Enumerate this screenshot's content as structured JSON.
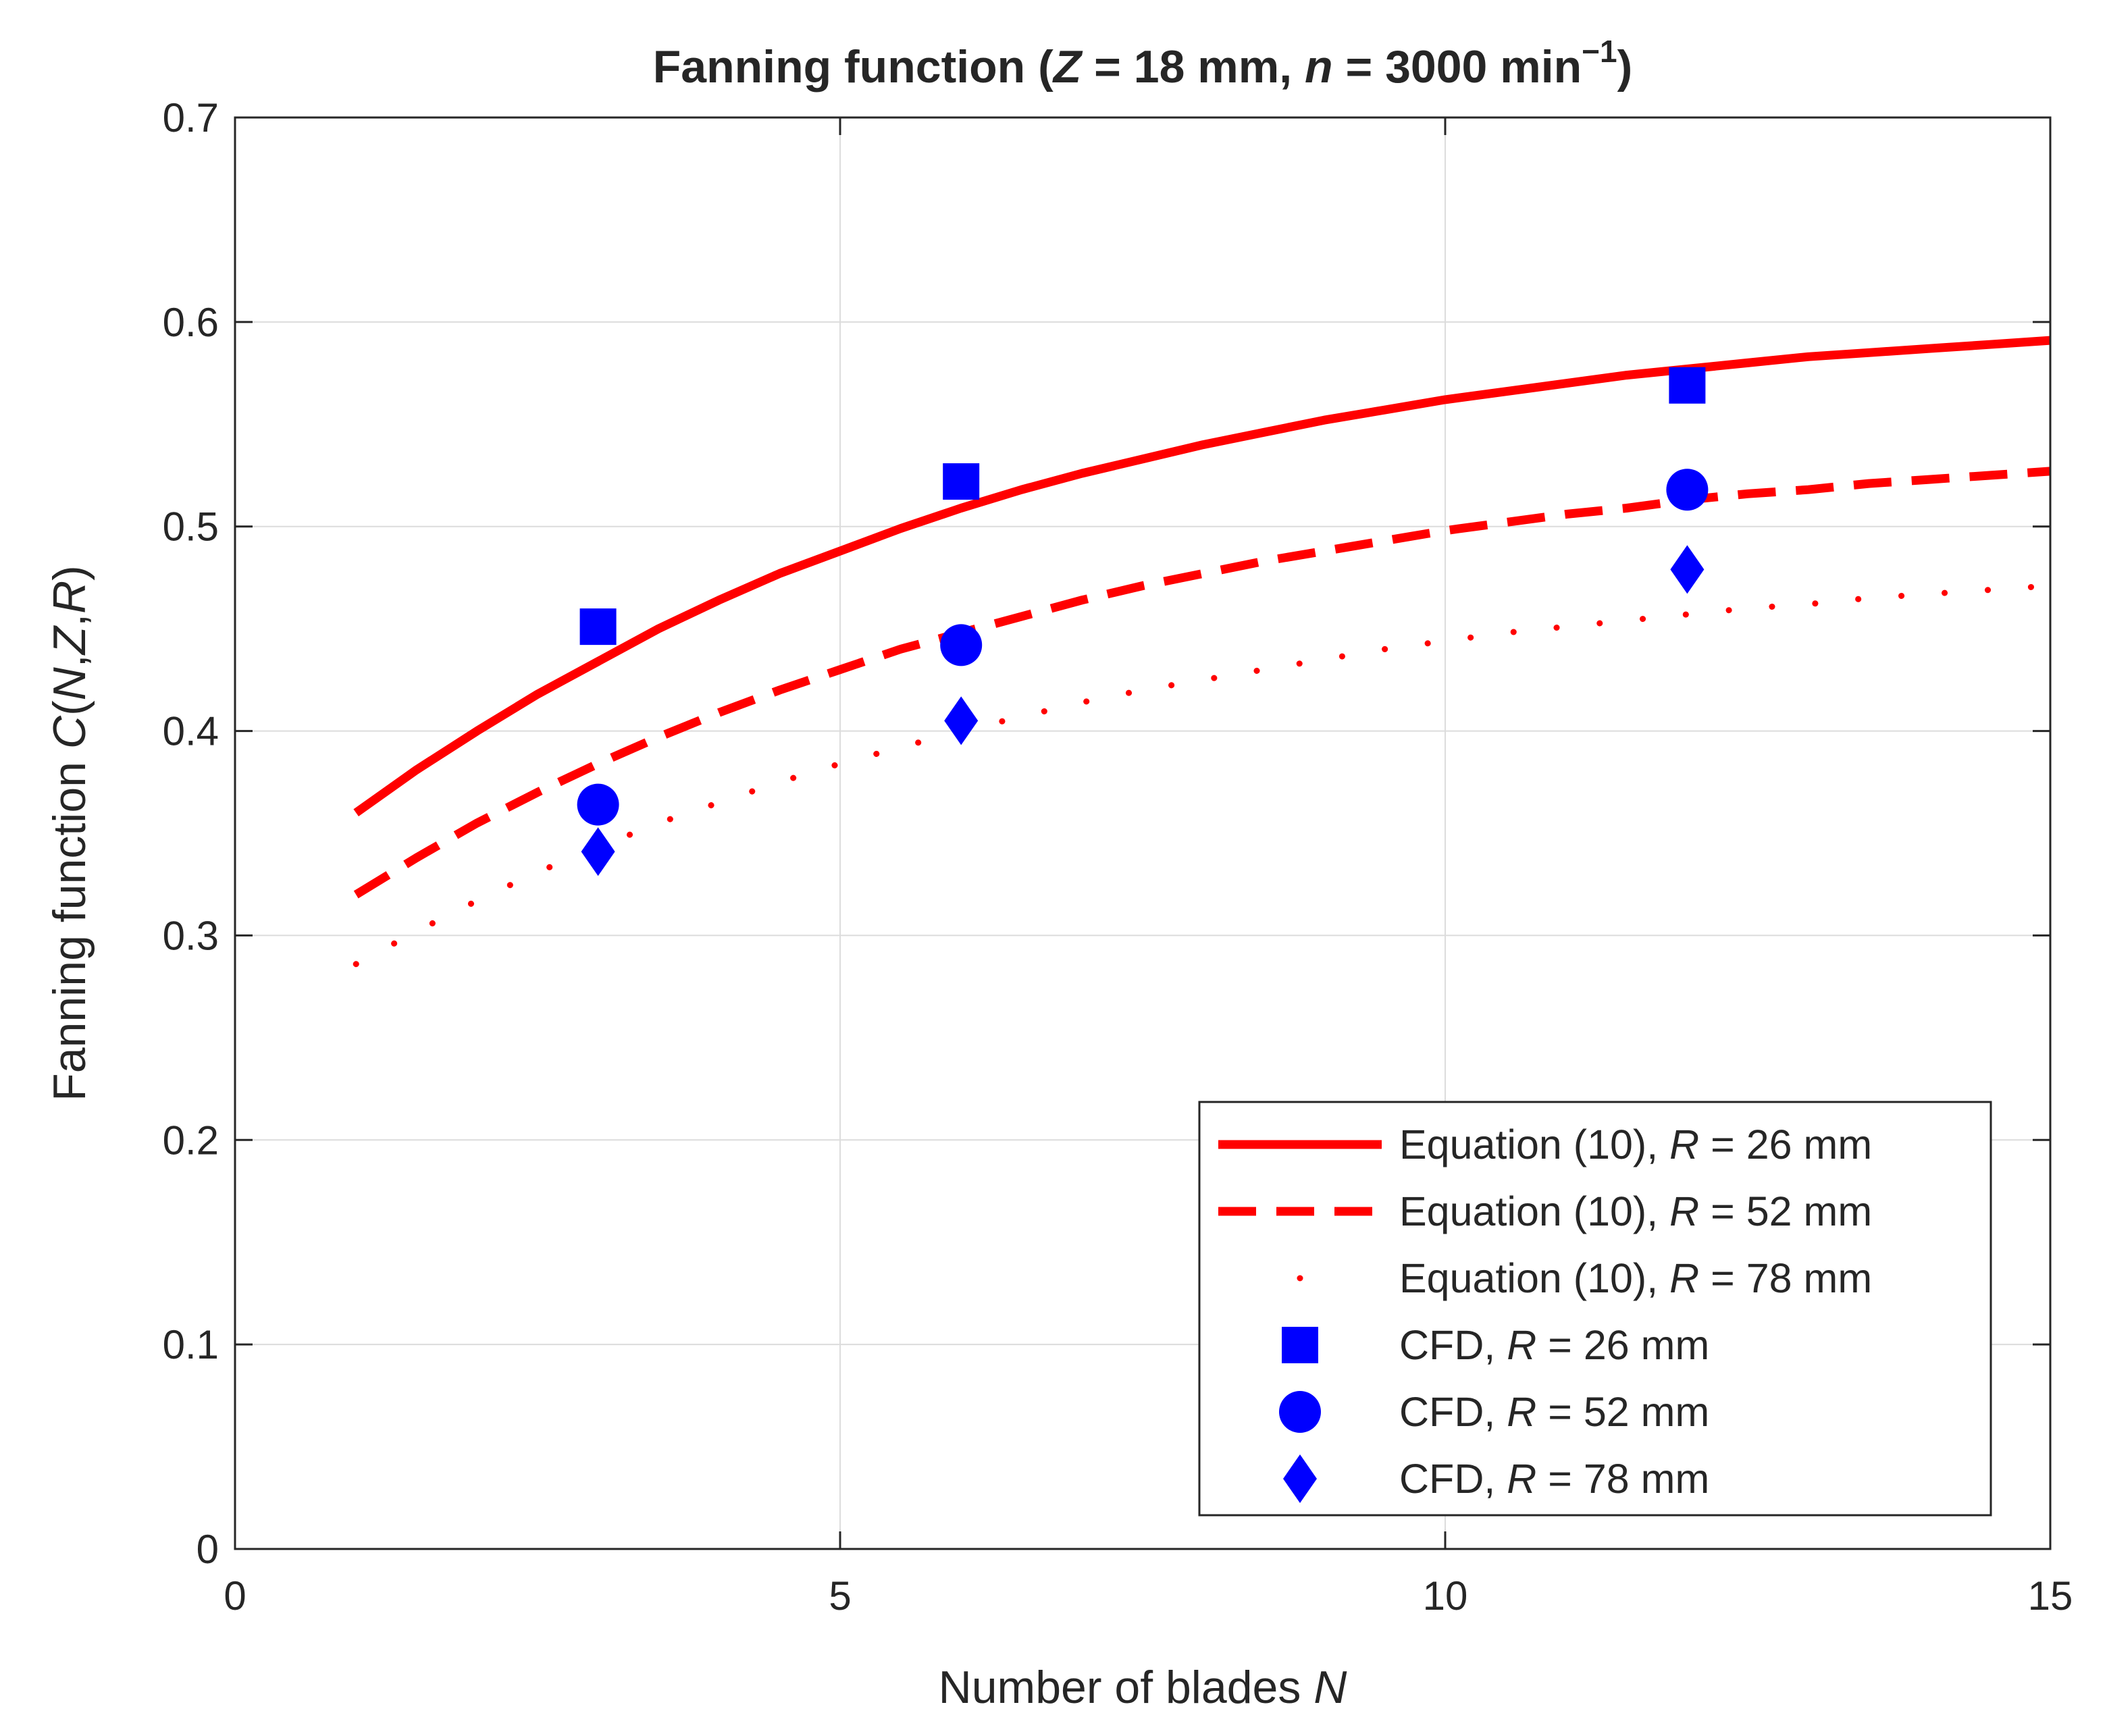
{
  "chart_data": {
    "type": "line",
    "title": {
      "prefix": "Fanning function (",
      "z_symbol": "Z",
      "z_value": " = 18 mm, ",
      "n_symbol": "n",
      "n_value": " = 3000 min",
      "n_exponent": "−1",
      "suffix": ")"
    },
    "xlabel": {
      "text": "Number of blades ",
      "symbol": "N"
    },
    "ylabel": {
      "text": "Fanning function ",
      "c": "C",
      "open": "(",
      "n": "N",
      "sep1": ",",
      "z": "Z",
      "sep2": ",",
      "r": "R",
      "close": ")"
    },
    "xlim": [
      0,
      15
    ],
    "ylim": [
      0,
      0.7
    ],
    "xticks": [
      0,
      5,
      10,
      15
    ],
    "yticks": [
      0,
      0.1,
      0.2,
      0.3,
      0.4,
      0.5,
      0.6,
      0.7
    ],
    "grid": true,
    "legend_position": "bottom-right",
    "curve_x": [
      1,
      1.5,
      2,
      2.5,
      3,
      3.5,
      4,
      4.5,
      5,
      5.5,
      6,
      6.5,
      7,
      7.5,
      8,
      8.5,
      9,
      9.5,
      10,
      10.5,
      11,
      11.5,
      12,
      12.5,
      13,
      13.5,
      14,
      14.5,
      15
    ],
    "series": [
      {
        "name_prefix": "Equation (10), ",
        "name_symbol": "R",
        "name_value": " = 26 mm",
        "kind": "line",
        "style": "solid",
        "color": "#ff0000",
        "values": [
          0.36,
          0.381,
          0.4,
          0.418,
          0.434,
          0.45,
          0.464,
          0.477,
          0.488,
          0.499,
          0.509,
          0.518,
          0.526,
          0.533,
          0.54,
          0.546,
          0.552,
          0.557,
          0.562,
          0.566,
          0.57,
          0.574,
          0.577,
          0.58,
          0.583,
          0.585,
          0.587,
          0.589,
          0.591
        ]
      },
      {
        "name_prefix": "Equation (10), ",
        "name_symbol": "R",
        "name_value": " = 52 mm",
        "kind": "line",
        "style": "dashed",
        "color": "#ff0000",
        "values": [
          0.32,
          0.338,
          0.355,
          0.37,
          0.384,
          0.397,
          0.409,
          0.42,
          0.43,
          0.44,
          0.448,
          0.456,
          0.464,
          0.471,
          0.477,
          0.483,
          0.488,
          0.493,
          0.498,
          0.502,
          0.506,
          0.509,
          0.513,
          0.516,
          0.518,
          0.521,
          0.523,
          0.525,
          0.527
        ]
      },
      {
        "name_prefix": "Equation (10), ",
        "name_symbol": "R",
        "name_value": " = 78 mm",
        "kind": "line",
        "style": "dotted",
        "color": "#ff0000",
        "values": [
          0.286,
          0.302,
          0.317,
          0.331,
          0.343,
          0.355,
          0.365,
          0.375,
          0.384,
          0.392,
          0.4,
          0.407,
          0.414,
          0.42,
          0.425,
          0.43,
          0.435,
          0.44,
          0.444,
          0.448,
          0.451,
          0.454,
          0.457,
          0.46,
          0.462,
          0.465,
          0.467,
          0.469,
          0.471
        ]
      },
      {
        "name_prefix": "CFD, ",
        "name_symbol": "R",
        "name_value": " = 26 mm",
        "kind": "marker",
        "marker": "square",
        "color": "#0000ff",
        "x": [
          3,
          6,
          12
        ],
        "values": [
          0.451,
          0.522,
          0.569
        ]
      },
      {
        "name_prefix": "CFD, ",
        "name_symbol": "R",
        "name_value": " = 52 mm",
        "kind": "marker",
        "marker": "circle",
        "color": "#0000ff",
        "x": [
          3,
          6,
          12
        ],
        "values": [
          0.364,
          0.442,
          0.518
        ]
      },
      {
        "name_prefix": "CFD, ",
        "name_symbol": "R",
        "name_value": " = 78 mm",
        "kind": "marker",
        "marker": "diamond",
        "color": "#0000ff",
        "x": [
          3,
          6,
          12
        ],
        "values": [
          0.341,
          0.405,
          0.479
        ]
      }
    ]
  }
}
